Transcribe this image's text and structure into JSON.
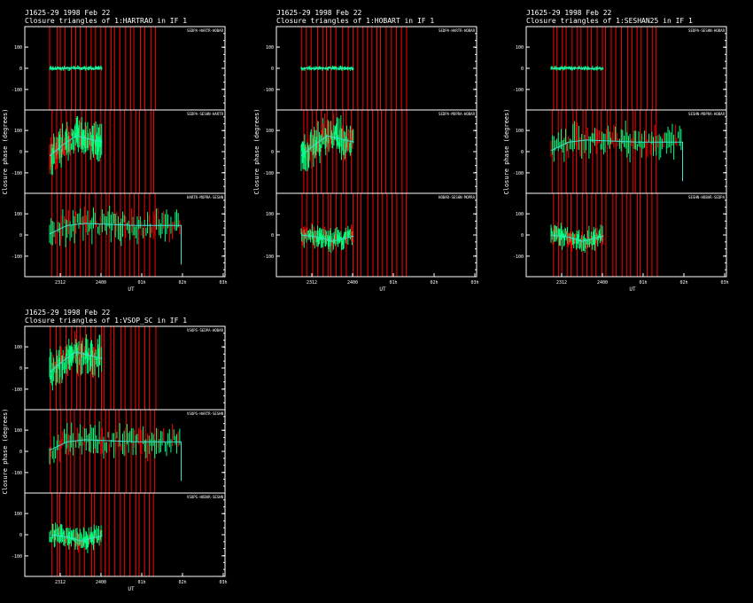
{
  "colors": {
    "background": "#000000",
    "axes": "#ffffff",
    "text": "#ffffff",
    "data": "#00ff7f",
    "outliers": "#ff0000",
    "model": "#40e0d0"
  },
  "chart_data": [
    {
      "type": "line",
      "title": "J1625-29   1998 Feb 22",
      "subtitle": "Closure triangles of 1:HARTRAO in IF 1",
      "xlabel": "UT",
      "ylabel": "Closure phase  (degrees)",
      "xtick_labels": [
        "23^12^",
        "24^00^",
        "01^h^",
        "02^h^",
        "03^h^"
      ],
      "ytick_values": [
        -100,
        0,
        100
      ],
      "ylim": [
        -180,
        180
      ],
      "red_flag_lines": 22,
      "panels": [
        {
          "label": "SEDPA-HARTR-HOBAR",
          "data_end": 0.3,
          "model": [
            [
              0.0,
              0
            ],
            [
              0.2,
              0
            ],
            [
              0.3,
              0
            ]
          ],
          "spread": 6
        },
        {
          "label": "SEDPA-SESHN-HARTR",
          "data_end": 0.3,
          "model": [
            [
              0.0,
              -20
            ],
            [
              0.08,
              35
            ],
            [
              0.15,
              75
            ],
            [
              0.2,
              65
            ],
            [
              0.3,
              45
            ]
          ],
          "spread": 50
        },
        {
          "label": "HARTR-MOPRA-SESHN",
          "data_end": 0.75,
          "model": [
            [
              0.0,
              5
            ],
            [
              0.1,
              45
            ],
            [
              0.2,
              55
            ],
            [
              0.5,
              45
            ],
            [
              0.75,
              45
            ]
          ],
          "spread": 45,
          "end_drop": -140
        }
      ]
    },
    {
      "type": "line",
      "title": "J1625-29   1998 Feb 22",
      "subtitle": "Closure triangles of 1:HOBART in IF 1",
      "xlabel": "UT",
      "ylabel": "Closure phase  (degrees)",
      "xtick_labels": [
        "23^12^",
        "24^00^",
        "01^h^",
        "02^h^",
        "03^h^"
      ],
      "ytick_values": [
        -100,
        0,
        100
      ],
      "ylim": [
        -180,
        180
      ],
      "red_flag_lines": 22,
      "panels": [
        {
          "label": "SEDPA-HARTR-HOBAR",
          "data_end": 0.3,
          "model": [
            [
              0.0,
              0
            ],
            [
              0.2,
              0
            ],
            [
              0.3,
              0
            ]
          ],
          "spread": 6
        },
        {
          "label": "SEDPA-MOPRA-HOBAR",
          "data_end": 0.3,
          "model": [
            [
              0.0,
              -20
            ],
            [
              0.08,
              35
            ],
            [
              0.15,
              75
            ],
            [
              0.2,
              65
            ],
            [
              0.3,
              45
            ]
          ],
          "spread": 50
        },
        {
          "label": "HOBAR-SESHN-MOPRA",
          "data_end": 0.3,
          "model": [
            [
              0.0,
              0
            ],
            [
              0.1,
              -10
            ],
            [
              0.18,
              -30
            ],
            [
              0.3,
              -5
            ]
          ],
          "spread": 30
        }
      ]
    },
    {
      "type": "line",
      "title": "J1625-29   1998 Feb 22",
      "subtitle": "Closure triangles of 1:SESHAN25 in IF 1",
      "xlabel": "UT",
      "ylabel": "Closure phase  (degrees)",
      "xtick_labels": [
        "23^12^",
        "24^00^",
        "01^h^",
        "02^h^",
        "03^h^"
      ],
      "ytick_values": [
        -100,
        0,
        100
      ],
      "ylim": [
        -180,
        180
      ],
      "red_flag_lines": 22,
      "panels": [
        {
          "label": "SEDPA-SESHN-HOBAR",
          "data_end": 0.3,
          "model": [
            [
              0.0,
              0
            ],
            [
              0.2,
              0
            ],
            [
              0.3,
              0
            ]
          ],
          "spread": 6
        },
        {
          "label": "SESHN-MOPRA-HOBAR",
          "data_end": 0.75,
          "model": [
            [
              0.0,
              5
            ],
            [
              0.1,
              45
            ],
            [
              0.2,
              55
            ],
            [
              0.5,
              45
            ],
            [
              0.75,
              45
            ]
          ],
          "spread": 45,
          "end_drop": -140
        },
        {
          "label": "SESHN-HOBAR-SEDPA",
          "data_end": 0.3,
          "model": [
            [
              0.0,
              0
            ],
            [
              0.1,
              -10
            ],
            [
              0.18,
              -30
            ],
            [
              0.3,
              -5
            ]
          ],
          "spread": 30
        }
      ]
    },
    {
      "type": "line",
      "title": "J1625-29   1998 Feb 22",
      "subtitle": "Closure triangles of 1:VSOP_SC in IF 1",
      "xlabel": "UT",
      "ylabel": "Closure phase  (degrees)",
      "xtick_labels": [
        "23^12^",
        "24^00^",
        "01^h^",
        "02^h^",
        "03^h^"
      ],
      "ytick_values": [
        -100,
        0,
        100
      ],
      "ylim": [
        -180,
        180
      ],
      "red_flag_lines": 22,
      "panels": [
        {
          "label": "VSOPS-SEDPA-HOBAR",
          "data_end": 0.3,
          "model": [
            [
              0.0,
              -20
            ],
            [
              0.08,
              35
            ],
            [
              0.15,
              75
            ],
            [
              0.2,
              65
            ],
            [
              0.3,
              45
            ]
          ],
          "spread": 50
        },
        {
          "label": "VSOPS-HARTR-SESHN",
          "data_end": 0.75,
          "model": [
            [
              0.0,
              5
            ],
            [
              0.1,
              45
            ],
            [
              0.2,
              55
            ],
            [
              0.5,
              45
            ],
            [
              0.75,
              45
            ]
          ],
          "spread": 45,
          "end_drop": -140
        },
        {
          "label": "VSOPS-HOBAR-SESHN",
          "data_end": 0.3,
          "model": [
            [
              0.0,
              0
            ],
            [
              0.1,
              -10
            ],
            [
              0.18,
              -30
            ],
            [
              0.3,
              -5
            ]
          ],
          "spread": 30
        }
      ]
    }
  ]
}
